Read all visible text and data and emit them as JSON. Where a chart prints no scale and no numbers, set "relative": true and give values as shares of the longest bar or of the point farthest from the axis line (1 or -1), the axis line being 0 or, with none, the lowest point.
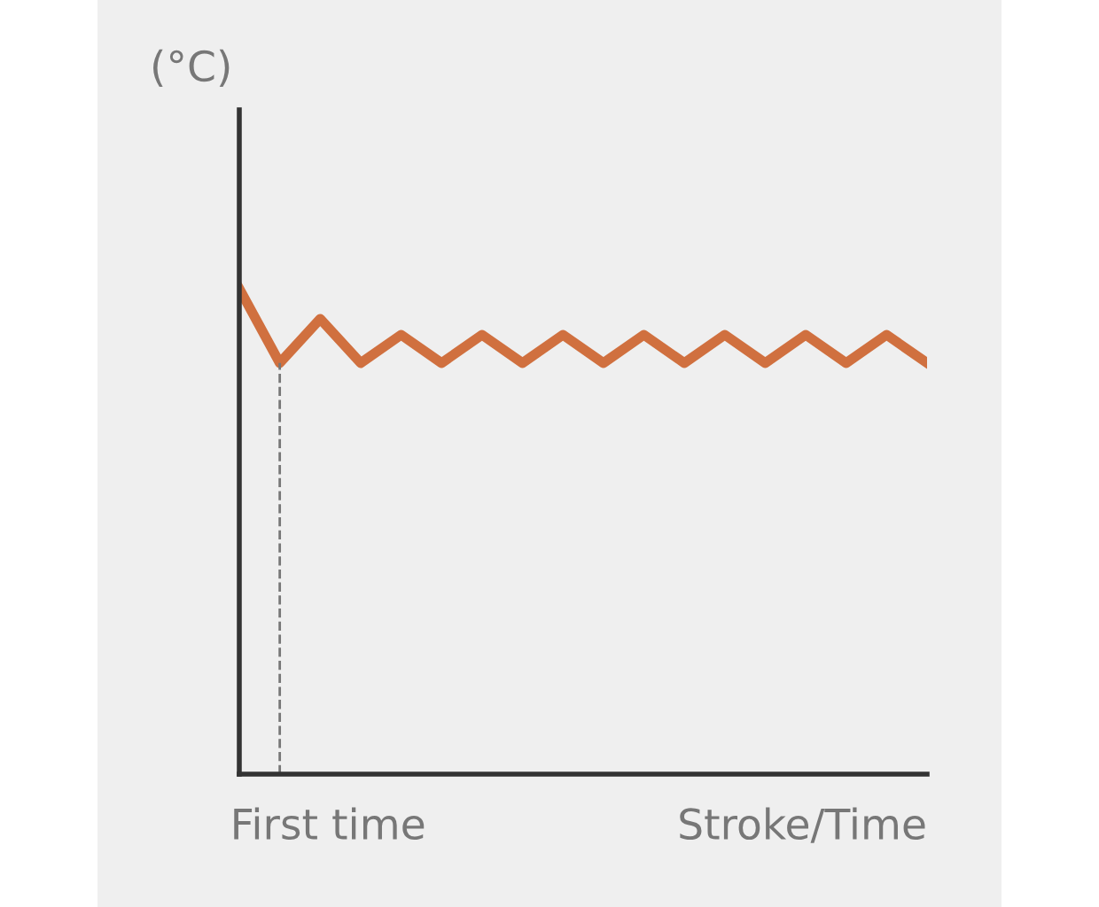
{
  "chart_data": {
    "type": "line",
    "relative": true,
    "xlabel": "Stroke/Time",
    "ylabel": "(°C)",
    "categories": [
      null,
      null,
      null,
      null,
      null,
      null,
      null,
      null,
      null,
      null,
      null,
      null,
      null,
      null,
      null,
      null,
      null,
      null
    ],
    "series": [
      {
        "color": "#d0703f",
        "values": [
          1,
          0.847,
          0.938,
          0.847,
          0.905,
          0.847,
          0.905,
          0.847,
          0.905,
          0.847,
          0.905,
          0.847,
          0.905,
          0.847,
          0.905,
          0.847,
          0.905,
          0.847
        ]
      }
    ],
    "annotations": [
      "First time"
    ],
    "legend": false,
    "marker": "none",
    "line_style": "solid"
  }
}
